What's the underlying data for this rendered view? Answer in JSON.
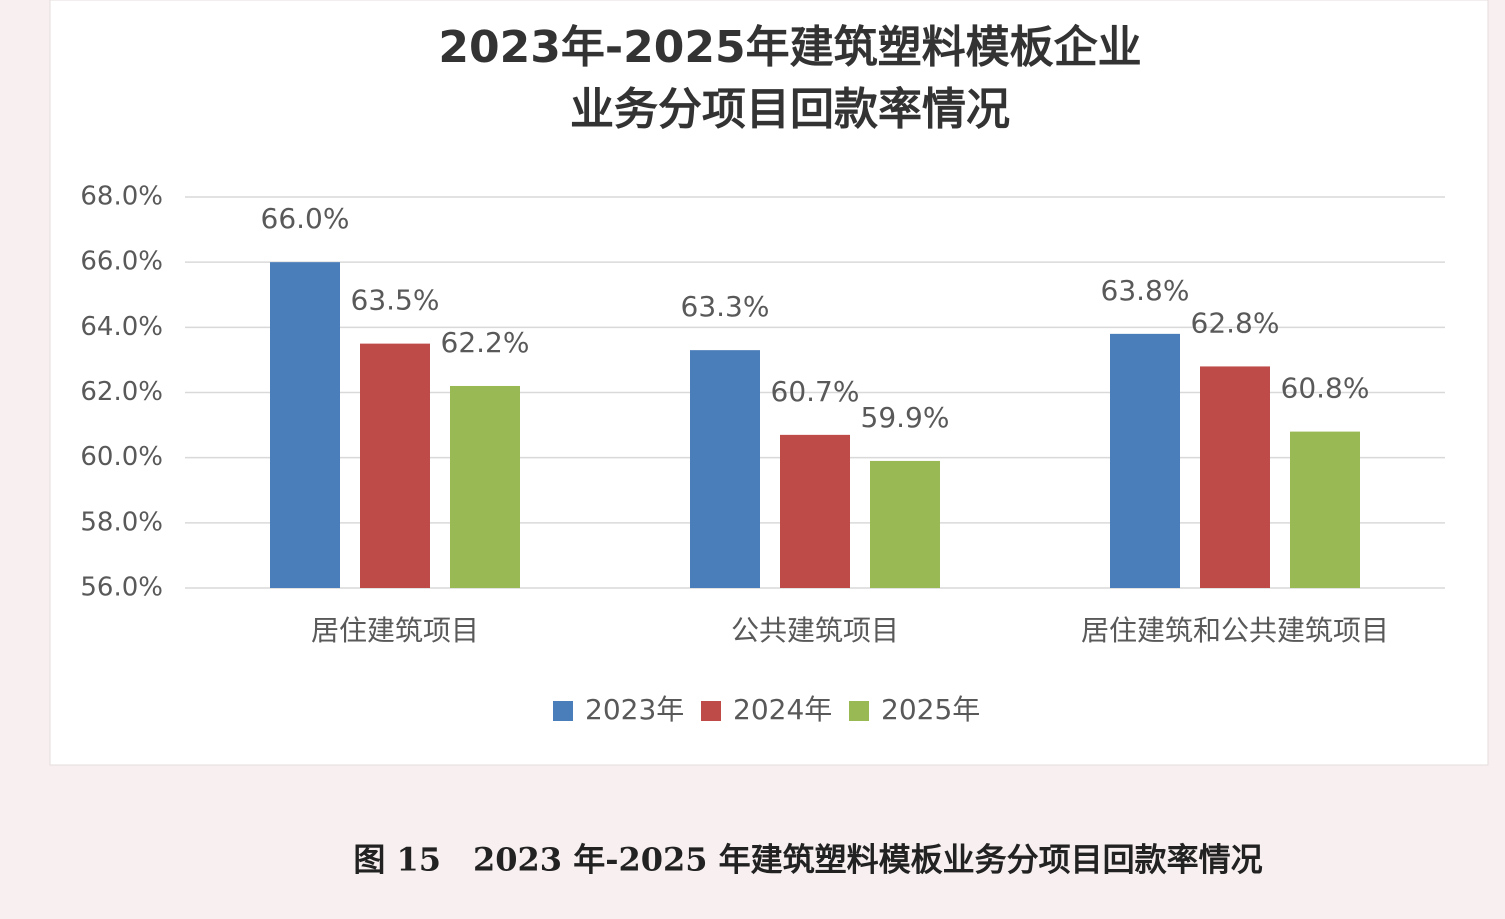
{
  "chart_data": {
    "type": "bar",
    "title": [
      "2023年-2025年建筑塑料模板企业",
      "业务分项目回款率情况"
    ],
    "caption": "图 15　2023 年-2025 年建筑塑料模板业务分项目回款率情况",
    "categories": [
      "居住建筑项目",
      "公共建筑项目",
      "居住建筑和公共建筑项目"
    ],
    "series": [
      {
        "name": "2023年",
        "color": "#4a7ebb",
        "values": [
          66.0,
          63.3,
          63.8
        ],
        "value_labels": [
          "66.0%",
          "63.3%",
          "63.8%"
        ]
      },
      {
        "name": "2024年",
        "color": "#be4b48",
        "values": [
          63.5,
          60.7,
          62.8
        ],
        "value_labels": [
          "63.5%",
          "60.7%",
          "62.8%"
        ]
      },
      {
        "name": "2025年",
        "color": "#98b954",
        "values": [
          62.2,
          59.9,
          60.8
        ],
        "value_labels": [
          "62.2%",
          "59.9%",
          "60.8%"
        ]
      }
    ],
    "ylim": [
      56,
      68
    ],
    "yticks": [
      {
        "value": 56,
        "label": "56.0%"
      },
      {
        "value": 58,
        "label": "58.0%"
      },
      {
        "value": 60,
        "label": "60.0%"
      },
      {
        "value": 62,
        "label": "62.0%"
      },
      {
        "value": 64,
        "label": "64.0%"
      },
      {
        "value": 66,
        "label": "66.0%"
      },
      {
        "value": 68,
        "label": "68.0%"
      }
    ],
    "grid": true,
    "legend": "bottom"
  }
}
